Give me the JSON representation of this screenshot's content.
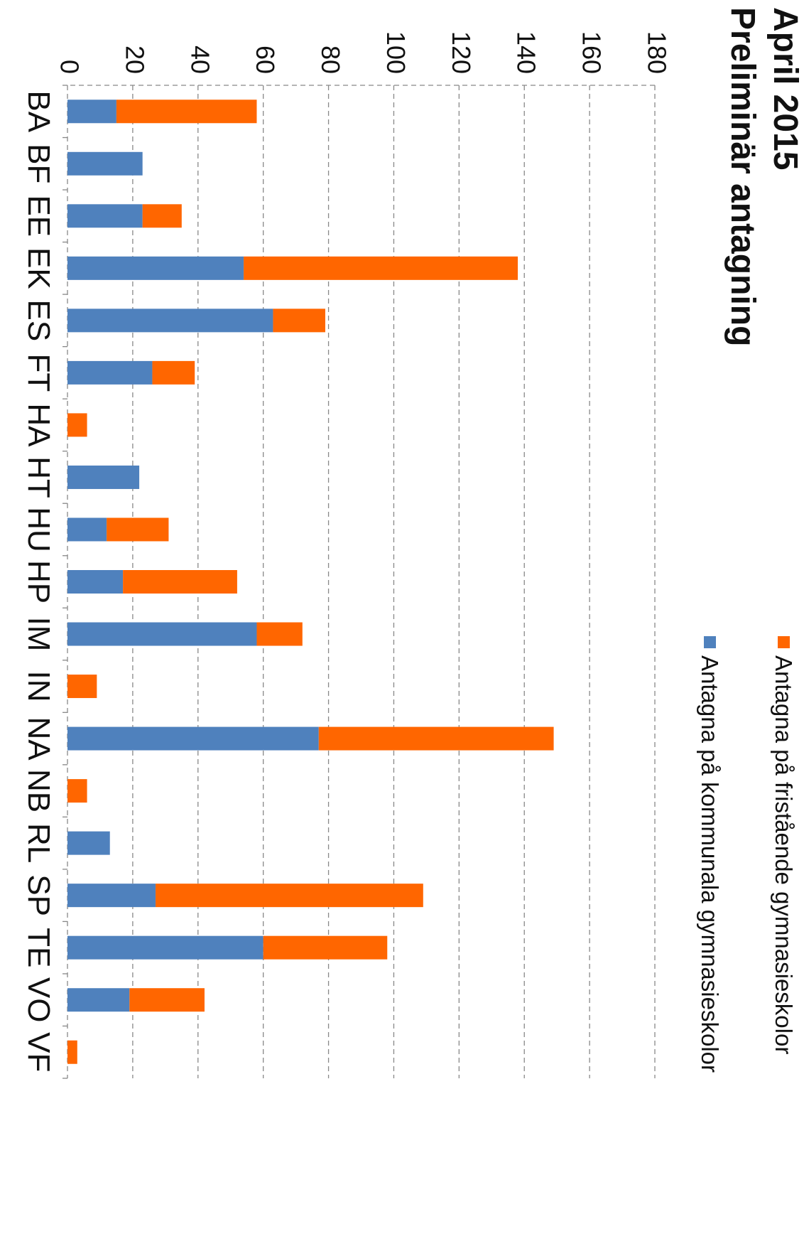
{
  "chart_data": {
    "type": "bar",
    "orientation": "stacked",
    "title": "April 2015",
    "subtitle": "Preliminär antagning",
    "categories": [
      "BA",
      "BF",
      "EE",
      "EK",
      "ES",
      "FT",
      "HA",
      "HT",
      "HU",
      "HP",
      "IM",
      "IN",
      "NA",
      "NB",
      "RL",
      "SP",
      "TE",
      "VO",
      "VF"
    ],
    "series": [
      {
        "name": "Antagna på kommunala gymnasieskolor",
        "color": "#4F81BD",
        "values": [
          15,
          23,
          23,
          54,
          63,
          26,
          0,
          22,
          12,
          17,
          58,
          0,
          77,
          0,
          13,
          27,
          60,
          19,
          0
        ]
      },
      {
        "name": "Antagna på fristående gymnasieskolor",
        "color": "#FF6600",
        "values": [
          43,
          0,
          12,
          84,
          16,
          13,
          6,
          0,
          19,
          35,
          14,
          9,
          72,
          6,
          0,
          82,
          38,
          23,
          3
        ]
      }
    ],
    "ylim": [
      0,
      180
    ],
    "yticks": [
      "0",
      "20",
      "40",
      "60",
      "80",
      "100",
      "120",
      "140",
      "160",
      "180"
    ],
    "grid": true,
    "legend_position": "top-right"
  }
}
